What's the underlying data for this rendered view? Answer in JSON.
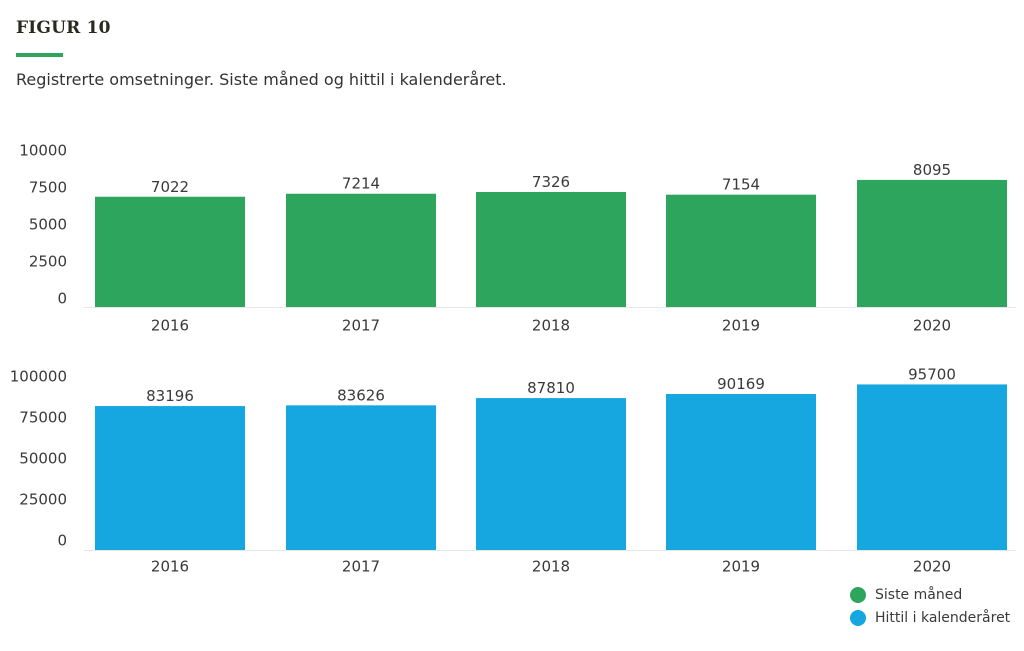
{
  "header": {
    "figure_label": "FIGUR 10",
    "subtitle": "Registrerte omsetninger. Siste måned og hittil i kalenderåret."
  },
  "colors": {
    "accent": "#2ea55c",
    "series_1": "#2ea55c",
    "series_2": "#17a7e0"
  },
  "legend": {
    "items": [
      {
        "label": "Siste måned",
        "color": "#2ea55c"
      },
      {
        "label": "Hittil i kalenderåret",
        "color": "#17a7e0"
      }
    ]
  },
  "chart_data": [
    {
      "type": "bar",
      "categories": [
        "2016",
        "2017",
        "2018",
        "2019",
        "2020"
      ],
      "series": [
        {
          "name": "Siste måned",
          "values": [
            7022,
            7214,
            7326,
            7154,
            8095
          ],
          "color": "#2ea55c"
        }
      ],
      "yticks": [
        "10000",
        "7500",
        "5000",
        "2500",
        "0"
      ],
      "ylim": [
        0,
        10000
      ],
      "xlabel": "",
      "ylabel": "",
      "title": "",
      "grid": false,
      "legend_position": "bottom-right"
    },
    {
      "type": "bar",
      "categories": [
        "2016",
        "2017",
        "2018",
        "2019",
        "2020"
      ],
      "series": [
        {
          "name": "Hittil i kalenderåret",
          "values": [
            83196,
            83626,
            87810,
            90169,
            95700
          ],
          "color": "#17a7e0"
        }
      ],
      "yticks": [
        "100000",
        "75000",
        "50000",
        "25000",
        "0"
      ],
      "ylim": [
        0,
        100000
      ],
      "xlabel": "",
      "ylabel": "",
      "title": "",
      "grid": false,
      "legend_position": "bottom-right"
    }
  ]
}
